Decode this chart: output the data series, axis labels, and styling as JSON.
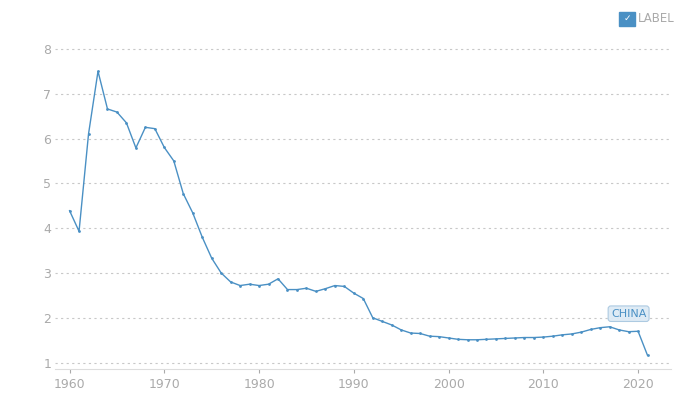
{
  "years": [
    1960,
    1961,
    1962,
    1963,
    1964,
    1965,
    1966,
    1967,
    1968,
    1969,
    1970,
    1971,
    1972,
    1973,
    1974,
    1975,
    1976,
    1977,
    1978,
    1979,
    1980,
    1981,
    1982,
    1983,
    1984,
    1985,
    1986,
    1987,
    1988,
    1989,
    1990,
    1991,
    1992,
    1993,
    1994,
    1995,
    1996,
    1997,
    1998,
    1999,
    2000,
    2001,
    2002,
    2003,
    2004,
    2005,
    2006,
    2007,
    2008,
    2009,
    2010,
    2011,
    2012,
    2013,
    2014,
    2015,
    2016,
    2017,
    2018,
    2019,
    2020,
    2021
  ],
  "values": [
    4.39,
    3.93,
    6.1,
    7.5,
    6.66,
    6.59,
    6.35,
    5.79,
    6.25,
    6.22,
    5.8,
    5.5,
    4.77,
    4.34,
    3.8,
    3.33,
    3.0,
    2.8,
    2.72,
    2.75,
    2.72,
    2.75,
    2.87,
    2.63,
    2.63,
    2.66,
    2.59,
    2.65,
    2.72,
    2.7,
    2.55,
    2.43,
    2.0,
    1.92,
    1.84,
    1.73,
    1.66,
    1.65,
    1.59,
    1.58,
    1.55,
    1.52,
    1.51,
    1.51,
    1.52,
    1.53,
    1.54,
    1.55,
    1.56,
    1.56,
    1.57,
    1.59,
    1.62,
    1.64,
    1.68,
    1.74,
    1.78,
    1.8,
    1.73,
    1.69,
    1.7,
    1.16
  ],
  "line_color": "#4a90c4",
  "background_color": "#ffffff",
  "grid_color": "#c8c8c8",
  "xlim": [
    1958.5,
    2023.5
  ],
  "ylim": [
    0.85,
    8.35
  ],
  "yticks": [
    1,
    2,
    3,
    4,
    5,
    6,
    7,
    8
  ],
  "xticks": [
    1960,
    1970,
    1980,
    1990,
    2000,
    2010,
    2020
  ],
  "label_text": "CHINA",
  "legend_text": "LABEL",
  "legend_color": "#4a90c4",
  "tick_fontsize": 9,
  "axis_color": "#aaaaaa",
  "china_label_year": 2018,
  "china_label_val": 1.73
}
